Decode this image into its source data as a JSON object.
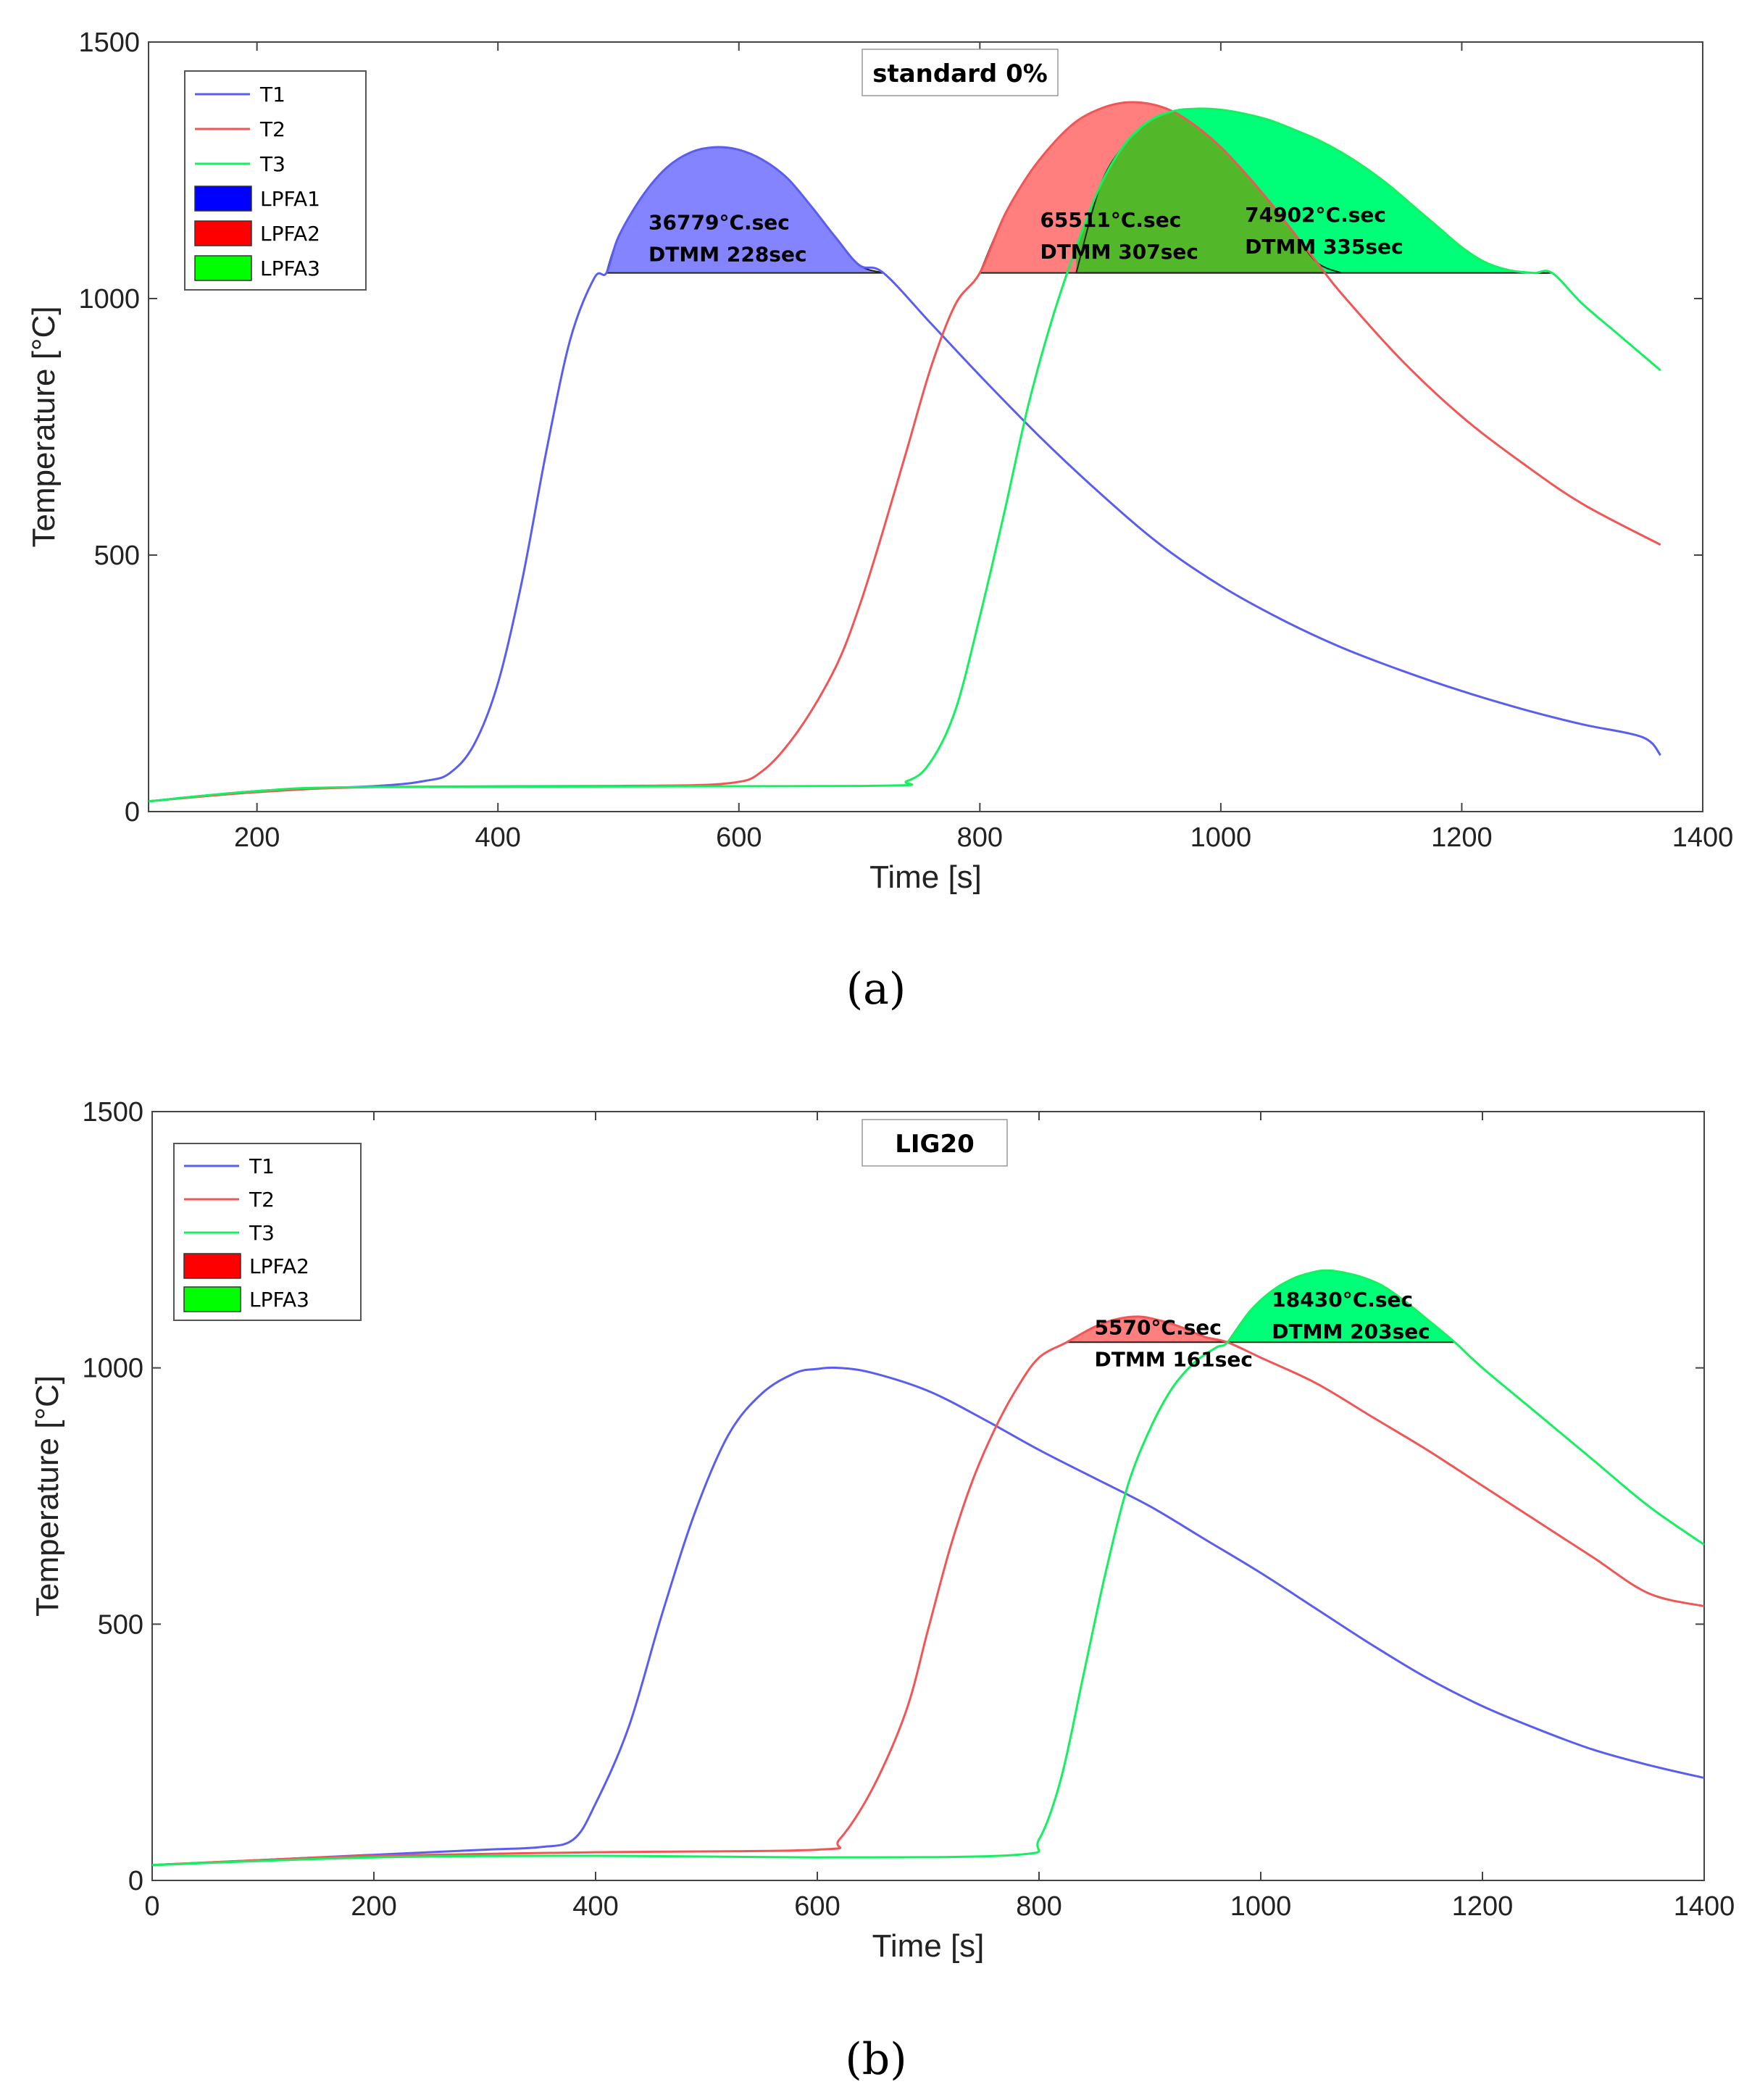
{
  "colors": {
    "T1": "#5a5ef0",
    "T2": "#f25555",
    "T3": "#14f060",
    "fill_T1": "#8484ff",
    "fill_T2": "#ff7e7e",
    "fill_T3": "#00ff78",
    "overlap": "#52b82a",
    "legend_T1": "#0000ff",
    "legend_T2": "#ff0000",
    "legend_T3": "#00ff00"
  },
  "chart_data": [
    {
      "type": "line",
      "panel_label": "(a)",
      "title": "standard 0%",
      "xlabel": "Time [s]",
      "ylabel": "Temperature [°C]",
      "xlim": [
        110,
        1400
      ],
      "ylim": [
        0,
        1500
      ],
      "xticks": [
        200,
        400,
        600,
        800,
        1000,
        1200,
        1400
      ],
      "yticks": [
        0,
        500,
        1000,
        1500
      ],
      "threshold": 1050,
      "legend": [
        {
          "label": "T1",
          "kind": "line",
          "series": "T1"
        },
        {
          "label": "T2",
          "kind": "line",
          "series": "T2"
        },
        {
          "label": "T3",
          "kind": "line",
          "series": "T3"
        },
        {
          "label": "LPFA1",
          "kind": "patch",
          "series": "T1"
        },
        {
          "label": "LPFA2",
          "kind": "patch",
          "series": "T2"
        },
        {
          "label": "LPFA3",
          "kind": "patch",
          "series": "T3"
        }
      ],
      "series": [
        {
          "name": "T1",
          "x": [
            110,
            200,
            300,
            340,
            360,
            380,
            400,
            420,
            440,
            460,
            480,
            490,
            500,
            520,
            540,
            560,
            580,
            600,
            620,
            640,
            660,
            680,
            700,
            720,
            760,
            800,
            850,
            900,
            950,
            1000,
            1050,
            1100,
            1150,
            1200,
            1250,
            1300,
            1350,
            1365
          ],
          "y": [
            20,
            40,
            50,
            60,
            75,
            130,
            250,
            450,
            700,
            920,
            1040,
            1050,
            1120,
            1200,
            1255,
            1285,
            1295,
            1290,
            1270,
            1235,
            1180,
            1120,
            1065,
            1050,
            950,
            850,
            730,
            620,
            520,
            440,
            375,
            320,
            275,
            235,
            200,
            170,
            145,
            110
          ]
        },
        {
          "name": "T2",
          "x": [
            110,
            200,
            300,
            500,
            590,
            620,
            650,
            680,
            700,
            720,
            740,
            760,
            780,
            800,
            820,
            840,
            860,
            880,
            900,
            920,
            940,
            960,
            980,
            1000,
            1020,
            1040,
            1060,
            1080,
            1100,
            1150,
            1200,
            1250,
            1300,
            1365
          ],
          "y": [
            20,
            38,
            48,
            50,
            55,
            80,
            160,
            280,
            400,
            550,
            710,
            870,
            990,
            1050,
            1160,
            1240,
            1300,
            1345,
            1370,
            1382,
            1380,
            1365,
            1335,
            1295,
            1245,
            1190,
            1130,
            1070,
            1010,
            880,
            770,
            680,
            600,
            520
          ]
        },
        {
          "name": "T3",
          "x": [
            110,
            200,
            300,
            700,
            740,
            760,
            780,
            800,
            820,
            840,
            860,
            880,
            900,
            920,
            940,
            960,
            980,
            1000,
            1020,
            1040,
            1060,
            1080,
            1100,
            1120,
            1140,
            1160,
            1180,
            1200,
            1220,
            1240,
            1260,
            1275,
            1300,
            1330,
            1365
          ],
          "y": [
            20,
            40,
            48,
            50,
            60,
            100,
            200,
            380,
            580,
            790,
            960,
            1100,
            1220,
            1300,
            1345,
            1365,
            1370,
            1368,
            1360,
            1348,
            1330,
            1310,
            1285,
            1255,
            1220,
            1180,
            1140,
            1100,
            1070,
            1055,
            1050,
            1050,
            990,
            930,
            860
          ]
        }
      ],
      "areas": [
        {
          "series": "T1",
          "x_start": 490,
          "x_end": 720,
          "value": "36779°C.sec",
          "dtmm": "DTMM 228sec",
          "label_x": 525,
          "label_y": 1135
        },
        {
          "series": "T2",
          "x_start": 800,
          "x_end": 1100,
          "value": "65511°C.sec",
          "dtmm": "DTMM 307sec",
          "label_x": 850,
          "label_y": 1140
        },
        {
          "series": "T3",
          "x_start": 880,
          "x_end": 1275,
          "value": "74902°C.sec",
          "dtmm": "DTMM 335sec",
          "label_x": 1020,
          "label_y": 1150
        }
      ]
    },
    {
      "type": "line",
      "panel_label": "(b)",
      "title": "LIG20",
      "xlabel": "Time [s]",
      "ylabel": "Temperature [°C]",
      "xlim": [
        0,
        1400
      ],
      "ylim": [
        0,
        1500
      ],
      "xticks": [
        0,
        200,
        400,
        600,
        800,
        1000,
        1200,
        1400
      ],
      "yticks": [
        0,
        500,
        1000,
        1500
      ],
      "threshold": 1050,
      "legend": [
        {
          "label": "T1",
          "kind": "line",
          "series": "T1"
        },
        {
          "label": "T2",
          "kind": "line",
          "series": "T2"
        },
        {
          "label": "T3",
          "kind": "line",
          "series": "T3"
        },
        {
          "label": "LPFA2",
          "kind": "patch",
          "series": "T2"
        },
        {
          "label": "LPFA3",
          "kind": "patch",
          "series": "T3"
        }
      ],
      "series": [
        {
          "name": "T1",
          "x": [
            0,
            100,
            200,
            300,
            350,
            380,
            400,
            430,
            460,
            490,
            520,
            550,
            580,
            600,
            620,
            650,
            700,
            750,
            800,
            850,
            900,
            950,
            1000,
            1050,
            1100,
            1150,
            1200,
            1250,
            1300,
            1350,
            1400
          ],
          "y": [
            30,
            40,
            50,
            60,
            65,
            80,
            150,
            300,
            520,
            720,
            870,
            950,
            990,
            998,
            1000,
            990,
            955,
            900,
            840,
            785,
            730,
            665,
            600,
            530,
            460,
            395,
            340,
            295,
            255,
            225,
            200
          ]
        },
        {
          "name": "T2",
          "x": [
            0,
            100,
            200,
            400,
            600,
            620,
            650,
            680,
            700,
            720,
            740,
            760,
            780,
            800,
            825,
            850,
            870,
            890,
            910,
            930,
            950,
            970,
            1000,
            1050,
            1100,
            1150,
            1200,
            1250,
            1300,
            1350,
            1400
          ],
          "y": [
            30,
            40,
            48,
            55,
            60,
            80,
            180,
            330,
            490,
            650,
            780,
            880,
            960,
            1020,
            1050,
            1080,
            1095,
            1100,
            1092,
            1078,
            1060,
            1050,
            1020,
            970,
            905,
            840,
            770,
            700,
            630,
            560,
            535
          ]
        },
        {
          "name": "T3",
          "x": [
            0,
            200,
            400,
            600,
            780,
            800,
            820,
            840,
            860,
            880,
            900,
            920,
            940,
            960,
            970,
            990,
            1010,
            1030,
            1050,
            1060,
            1070,
            1090,
            1110,
            1130,
            1150,
            1175,
            1200,
            1250,
            1300,
            1350,
            1400
          ],
          "y": [
            30,
            45,
            48,
            45,
            50,
            80,
            200,
            400,
            600,
            770,
            880,
            960,
            1010,
            1040,
            1050,
            1110,
            1150,
            1175,
            1188,
            1190,
            1188,
            1178,
            1160,
            1130,
            1095,
            1050,
            1000,
            910,
            820,
            730,
            655
          ]
        }
      ],
      "areas": [
        {
          "series": "T2",
          "x_start": 825,
          "x_end": 970,
          "value": "5570°C.sec",
          "dtmm": "DTMM 161sec",
          "label_x": 850,
          "label_y": 1065
        },
        {
          "series": "T3",
          "x_start": 970,
          "x_end": 1175,
          "value": "18430°C.sec",
          "dtmm": "DTMM 203sec",
          "label_x": 1010,
          "label_y": 1120
        }
      ]
    }
  ]
}
